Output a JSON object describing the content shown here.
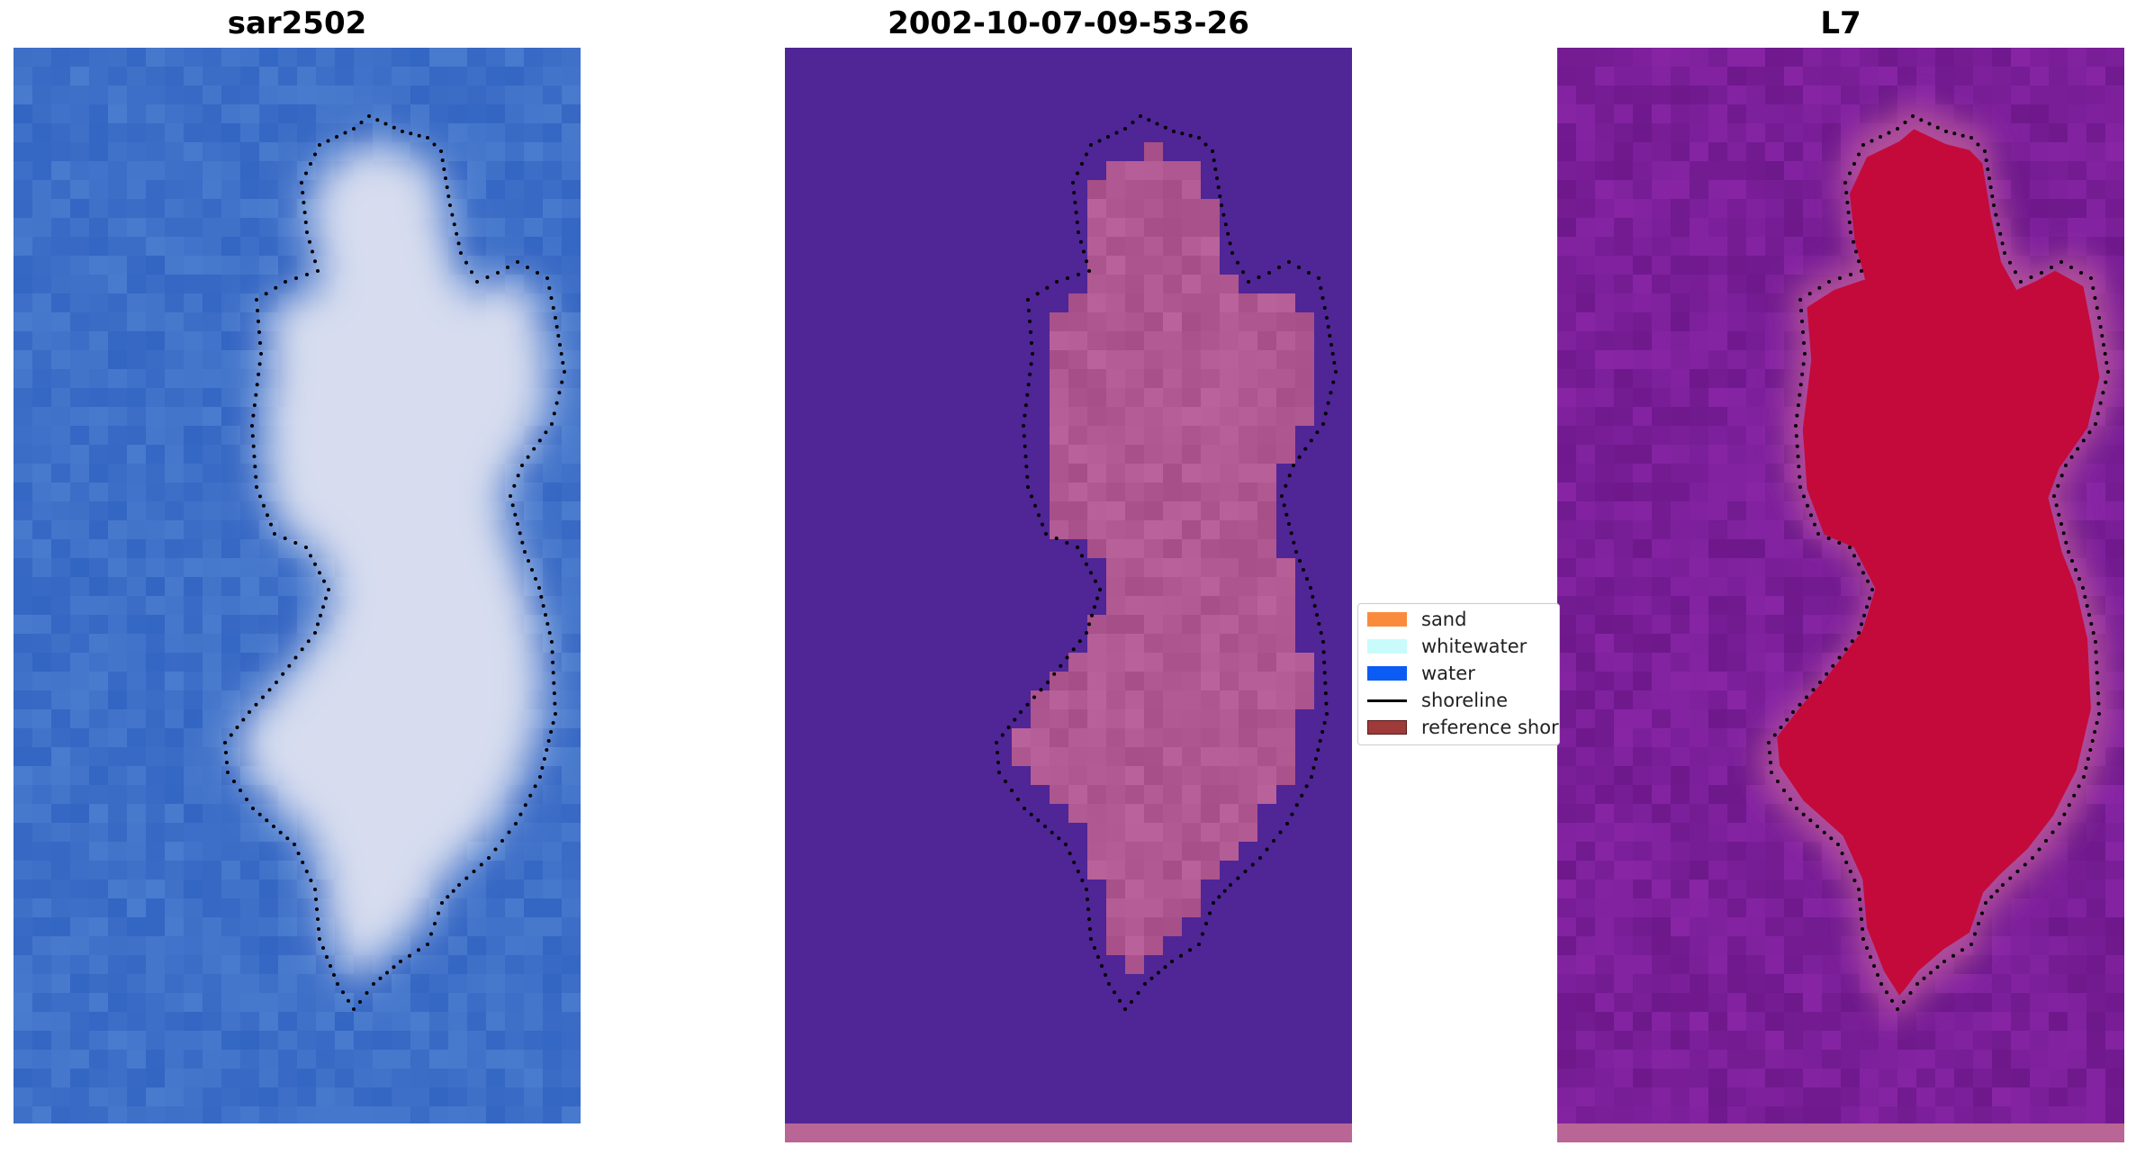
{
  "panels": [
    {
      "title": "sar2502"
    },
    {
      "title": "2002-10-07-09-53-26"
    },
    {
      "title": "L7"
    }
  ],
  "legend": {
    "items": [
      {
        "label": "sand",
        "color": "#fb8b3c",
        "kind": "swatch"
      },
      {
        "label": "whitewater",
        "color": "#c9fbfb",
        "kind": "swatch"
      },
      {
        "label": "water",
        "color": "#0a5cf5",
        "kind": "swatch"
      },
      {
        "label": "shoreline",
        "color": "#000000",
        "kind": "line"
      },
      {
        "label": "reference shoreline",
        "color": "#9e3a3a",
        "kind": "swatch"
      }
    ]
  },
  "colors": {
    "rgb_water": "#3e70c8",
    "rgb_land": "#dde2f0",
    "class_water": "#502596",
    "class_land": "#b96595",
    "index_water": "#7a1e98",
    "index_land": "#c40a3a",
    "shoreline": "#000000"
  }
}
